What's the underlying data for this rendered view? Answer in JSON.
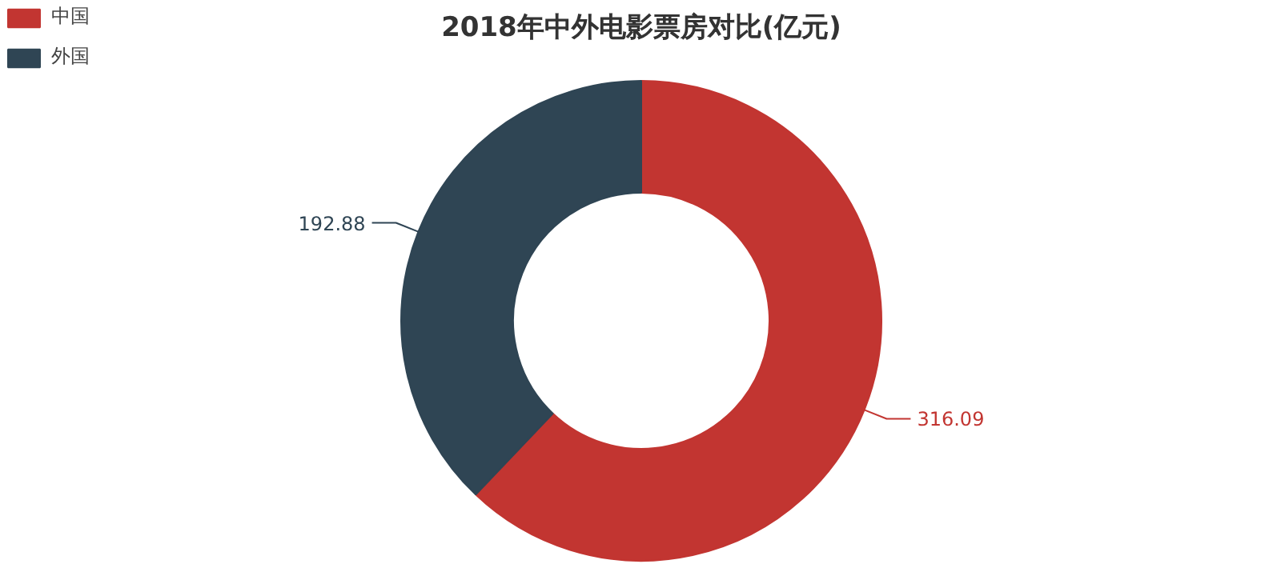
{
  "chart_data": {
    "type": "donut",
    "title": "2018年中外电影票房对比(亿元)",
    "categories": [
      "中国",
      "外国"
    ],
    "values": [
      316.09,
      192.88
    ],
    "colors": [
      "#c23531",
      "#2f4554"
    ],
    "data_labels": true,
    "legend": "top left"
  }
}
